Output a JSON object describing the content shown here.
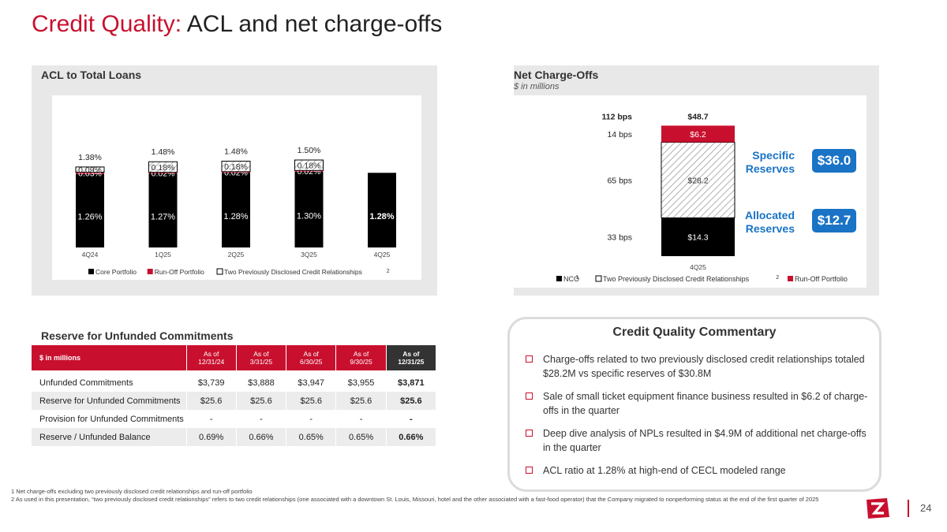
{
  "page": {
    "title_part1": "Credit Quality:",
    "title_part2": "ACL and net charge-offs",
    "page_number": "24"
  },
  "acl_panel": {
    "title": "ACL to Total Loans"
  },
  "nco_panel": {
    "title": "Net Charge-Offs",
    "subtitle": "$ in millions",
    "specific_label_1": "Specific",
    "specific_label_2": "Reserves",
    "specific_value": "$36.0",
    "allocated_label_1": "Allocated",
    "allocated_label_2": "Reserves",
    "allocated_value": "$12.7"
  },
  "chart_data": [
    {
      "type": "bar",
      "stacked": true,
      "title": "ACL to Total Loans",
      "categories": [
        "4Q24",
        "1Q25",
        "2Q25",
        "3Q25",
        "4Q25"
      ],
      "series": [
        {
          "name": "Core Portfolio",
          "color": "#000000",
          "values": [
            1.26,
            1.27,
            1.28,
            1.3,
            1.28
          ],
          "labels": [
            "1.26%",
            "1.27%",
            "1.28%",
            "1.30%",
            "1.28%"
          ]
        },
        {
          "name": "Run-Off Portfolio",
          "color": "#c8102e",
          "values": [
            0.03,
            0.02,
            0.02,
            0.02,
            0
          ],
          "labels": [
            "0.03%",
            "0.02%",
            "0.02%",
            "0.02%",
            ""
          ]
        },
        {
          "name": "Two Previously Disclosed Credit Relationships",
          "color": "hatch",
          "values": [
            0.09,
            0.18,
            0.18,
            0.18,
            0
          ],
          "labels": [
            "0.09%",
            "0.18%",
            "0.18%",
            "0.18%",
            ""
          ]
        }
      ],
      "totals": [
        "1.38%",
        "1.48%",
        "1.48%",
        "1.50%",
        ""
      ],
      "legend": [
        "Core Portfolio",
        "Run-Off Portfolio",
        "Two Previously Disclosed Credit Relationships"
      ],
      "legend_sup": "2",
      "legend_position": "bottom"
    },
    {
      "type": "bar",
      "stacked": true,
      "title": "Net Charge-Offs",
      "categories": [
        "4Q25"
      ],
      "series": [
        {
          "name": "NCO",
          "sup": "1",
          "color": "#000000",
          "values": [
            14.3
          ],
          "label": "$14.3",
          "bps": "33 bps"
        },
        {
          "name": "Two Previously Disclosed Credit Relationships",
          "sup": "2",
          "color": "hatch",
          "values": [
            28.2
          ],
          "label": "$28.2",
          "bps": "65 bps"
        },
        {
          "name": "Run-Off Portfolio",
          "color": "#c8102e",
          "values": [
            6.2
          ],
          "label": "$6.2",
          "bps": "14 bps"
        }
      ],
      "total": "$48.7",
      "total_bps": "112 bps",
      "legend_position": "bottom"
    }
  ],
  "reserve_table": {
    "title": "Reserve for Unfunded Commitments",
    "header": [
      "$ in millions",
      "As of 12/31/24",
      "As of 3/31/25",
      "As of 6/30/25",
      "As of 9/30/25",
      "As of 12/31/25"
    ],
    "header_top": [
      "",
      "As of",
      "As of",
      "As of",
      "As of",
      "As of"
    ],
    "header_bottom": [
      "",
      "12/31/24",
      "3/31/25",
      "6/30/25",
      "9/30/25",
      "12/31/25"
    ],
    "rows": [
      [
        "Unfunded Commitments",
        "$3,739",
        "$3,888",
        "$3,947",
        "$3,955",
        "$3,871"
      ],
      [
        "Reserve for Unfunded Commitments",
        "$25.6",
        "$25.6",
        "$25.6",
        "$25.6",
        "$25.6"
      ],
      [
        "Provision for Unfunded Commitments",
        "-",
        "-",
        "-",
        "-",
        "-"
      ],
      [
        "Reserve / Unfunded Balance",
        "0.69%",
        "0.66%",
        "0.65%",
        "0.65%",
        "0.66%"
      ]
    ]
  },
  "commentary": {
    "title": "Credit Quality Commentary",
    "items": [
      "Charge-offs related to two previously disclosed credit relationships totaled $28.2M vs specific reserves of $30.8M",
      "Sale of small ticket equipment finance business resulted in $6.2 of charge-offs in the quarter",
      "Deep dive analysis of  NPLs resulted in $4.9M of additional net charge-offs in the quarter",
      "ACL ratio at 1.28% at high-end of CECL modeled range"
    ]
  },
  "footnotes": [
    "1  Net charge-offs excluding two previously disclosed credit relationships and run-off portfolio",
    "2  As used in this presentation, “two previously disclosed credit relationships” refers to two credit relationships (one associated with a downtown St. Louis, Missouri, hotel and the other associated with a fast-food operator) that the Company migrated to nonperforming status at the end of the first quarter of 2025"
  ]
}
